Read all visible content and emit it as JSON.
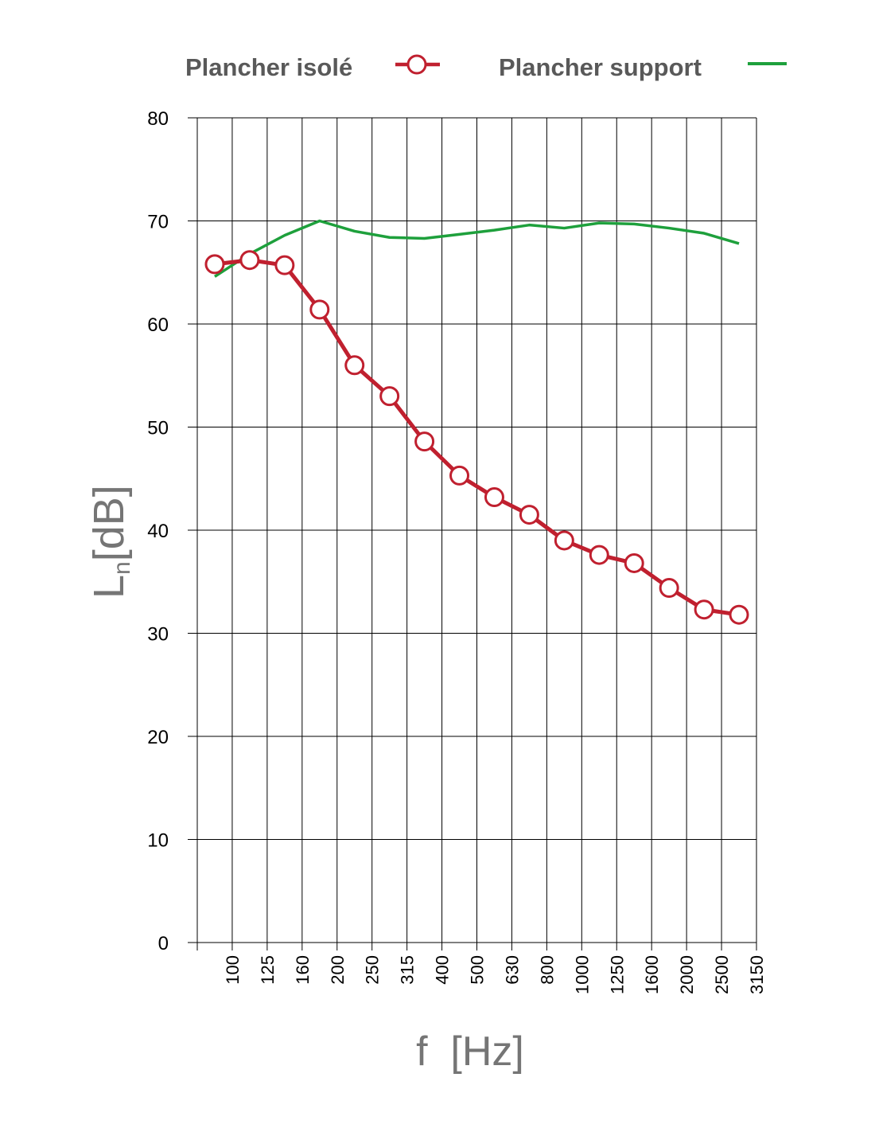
{
  "chart_data": {
    "type": "line",
    "title": "",
    "xlabel": "f  [Hz]",
    "ylabel": {
      "main": "L",
      "sub": "n",
      "unit": "[dB]"
    },
    "ylim": [
      0,
      80
    ],
    "yticks": [
      0,
      10,
      20,
      30,
      40,
      50,
      60,
      70,
      80
    ],
    "grid": true,
    "legend": "top",
    "x_tick_labels": [
      "100",
      "125",
      "160",
      "200",
      "250",
      "315",
      "400",
      "500",
      "630",
      "800",
      "1000",
      "1250",
      "1600",
      "2000",
      "2500",
      "3150"
    ],
    "x": [
      80,
      100,
      125,
      160,
      200,
      250,
      315,
      400,
      500,
      630,
      800,
      1000,
      1250,
      1600,
      2000,
      2500
    ],
    "series": [
      {
        "name": "Plancher isolé",
        "color": "#c0202f",
        "marker": "circle-open",
        "values": [
          65.8,
          66.2,
          65.7,
          61.4,
          56.0,
          53.0,
          48.6,
          45.3,
          43.2,
          41.5,
          39.0,
          37.6,
          36.8,
          34.4,
          32.3,
          31.8
        ]
      },
      {
        "name": "Plancher support",
        "color": "#1ea03c",
        "marker": "none",
        "values": [
          64.6,
          66.8,
          68.6,
          70.0,
          69.0,
          68.4,
          68.3,
          68.7,
          69.1,
          69.6,
          69.3,
          69.8,
          69.7,
          69.3,
          68.8,
          67.8
        ]
      }
    ]
  }
}
